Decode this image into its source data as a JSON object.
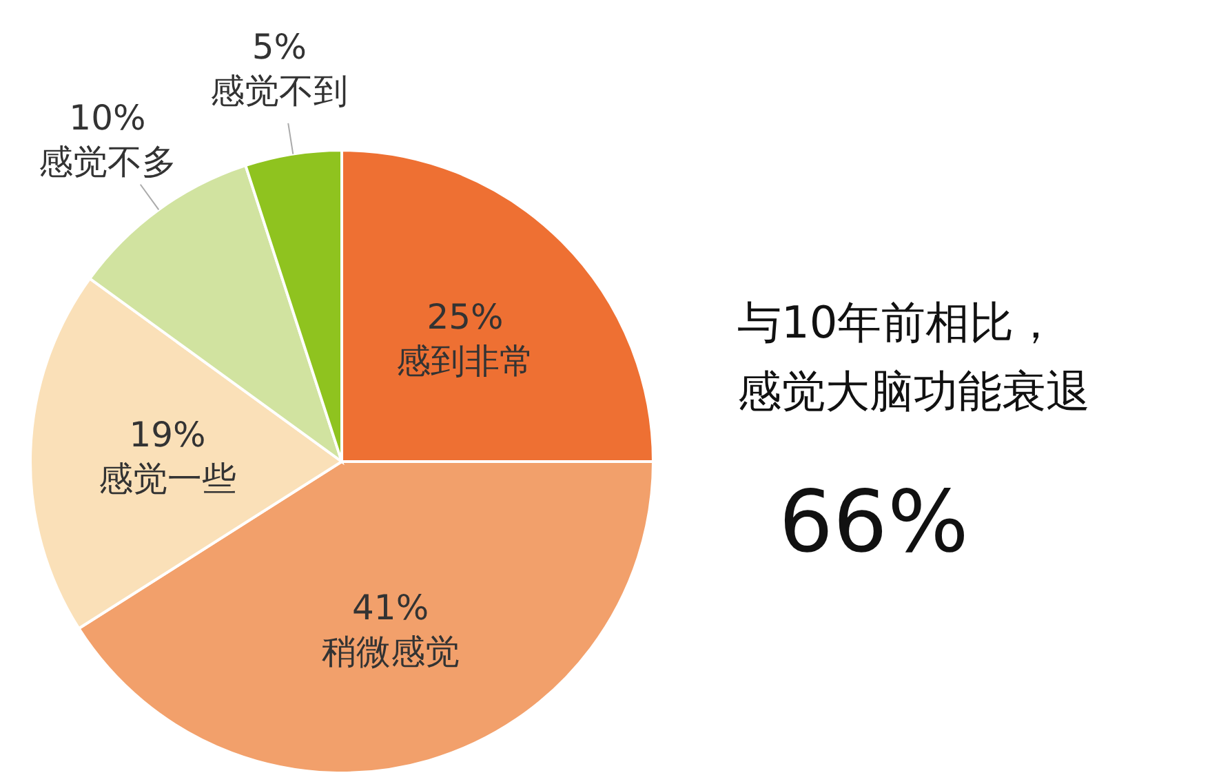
{
  "chart_data": {
    "type": "pie",
    "categories": [
      "感到非常",
      "稍微感觉",
      "感觉一些",
      "感觉不多",
      "感觉不到"
    ],
    "values": [
      25,
      41,
      19,
      10,
      5
    ],
    "value_labels": [
      "25%",
      "41%",
      "19%",
      "10%",
      "5%"
    ],
    "colors": [
      "#ee7033",
      "#f2a06b",
      "#fae0b8",
      "#d1e3a0",
      "#8fc31f"
    ],
    "annotations": [
      "与10年前相比，",
      "感觉大脑功能衰退",
      "66%"
    ]
  }
}
